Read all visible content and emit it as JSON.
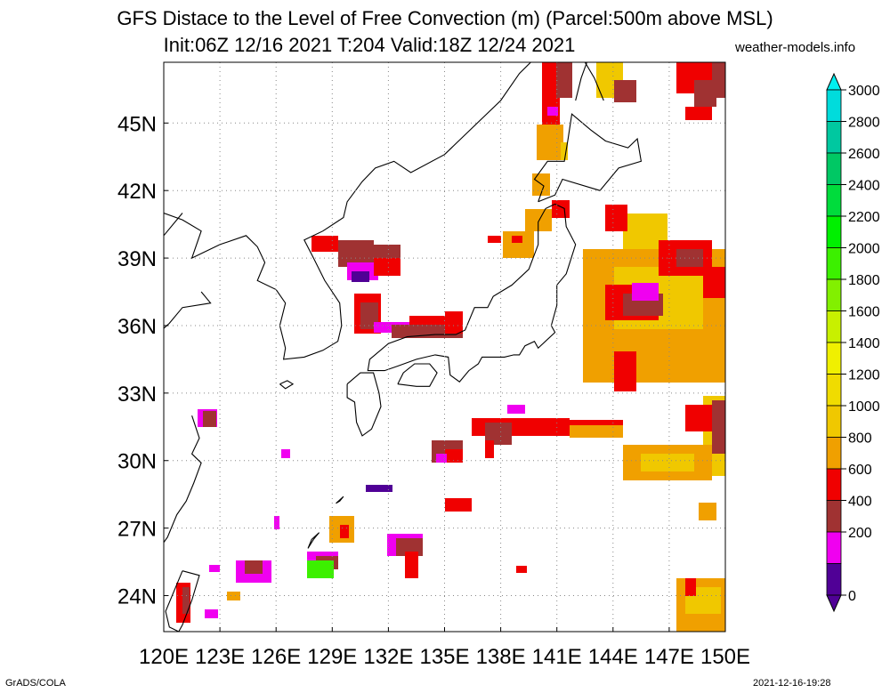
{
  "header": {
    "title_line1": "GFS Distace to the Level of Free Convection (m) (Parcel:500m above MSL)",
    "title_line2": "Init:06Z 12/16 2021 T:204 Valid:18Z 12/24 2021",
    "credit": "weather-models.info"
  },
  "footer": {
    "left": "GrADS/COLA",
    "right": "2021-12-16-19:28"
  },
  "map": {
    "lat_labels": [
      "45N",
      "42N",
      "39N",
      "36N",
      "33N",
      "30N",
      "27N",
      "24N"
    ],
    "lat_values": [
      45,
      42,
      39,
      36,
      33,
      30,
      27,
      24
    ],
    "lon_labels": [
      "120E",
      "123E",
      "126E",
      "129E",
      "132E",
      "135E",
      "138E",
      "141E",
      "144E",
      "147E",
      "150E"
    ],
    "lon_values": [
      120,
      123,
      126,
      129,
      132,
      135,
      138,
      141,
      144,
      147,
      150
    ],
    "lon_range": [
      120,
      150
    ],
    "lat_range": [
      22.4,
      47.7
    ]
  },
  "colorbar": {
    "labels": [
      "3000",
      "2800",
      "2600",
      "2400",
      "2200",
      "2000",
      "1800",
      "1600",
      "1400",
      "1200",
      "1000",
      "800",
      "600",
      "400",
      "200",
      "0"
    ],
    "colors": [
      "#00dcdc",
      "#00c8a0",
      "#00c864",
      "#00dc3c",
      "#00f000",
      "#3cf000",
      "#82f000",
      "#c8f000",
      "#f0f000",
      "#f0dc00",
      "#f0c800",
      "#f0a000",
      "#f00000",
      "#a03232",
      "#f000f0",
      "#500096"
    ],
    "top_arrow_color": "#00f0f0",
    "bottom_arrow_color": "#500096"
  },
  "field_colors": {
    "purple": "#500096",
    "magenta": "#f000f0",
    "brown": "#a03232",
    "red": "#f00000",
    "orange": "#f0a000",
    "amber": "#f0c800",
    "yellow": "#f0dc00"
  }
}
